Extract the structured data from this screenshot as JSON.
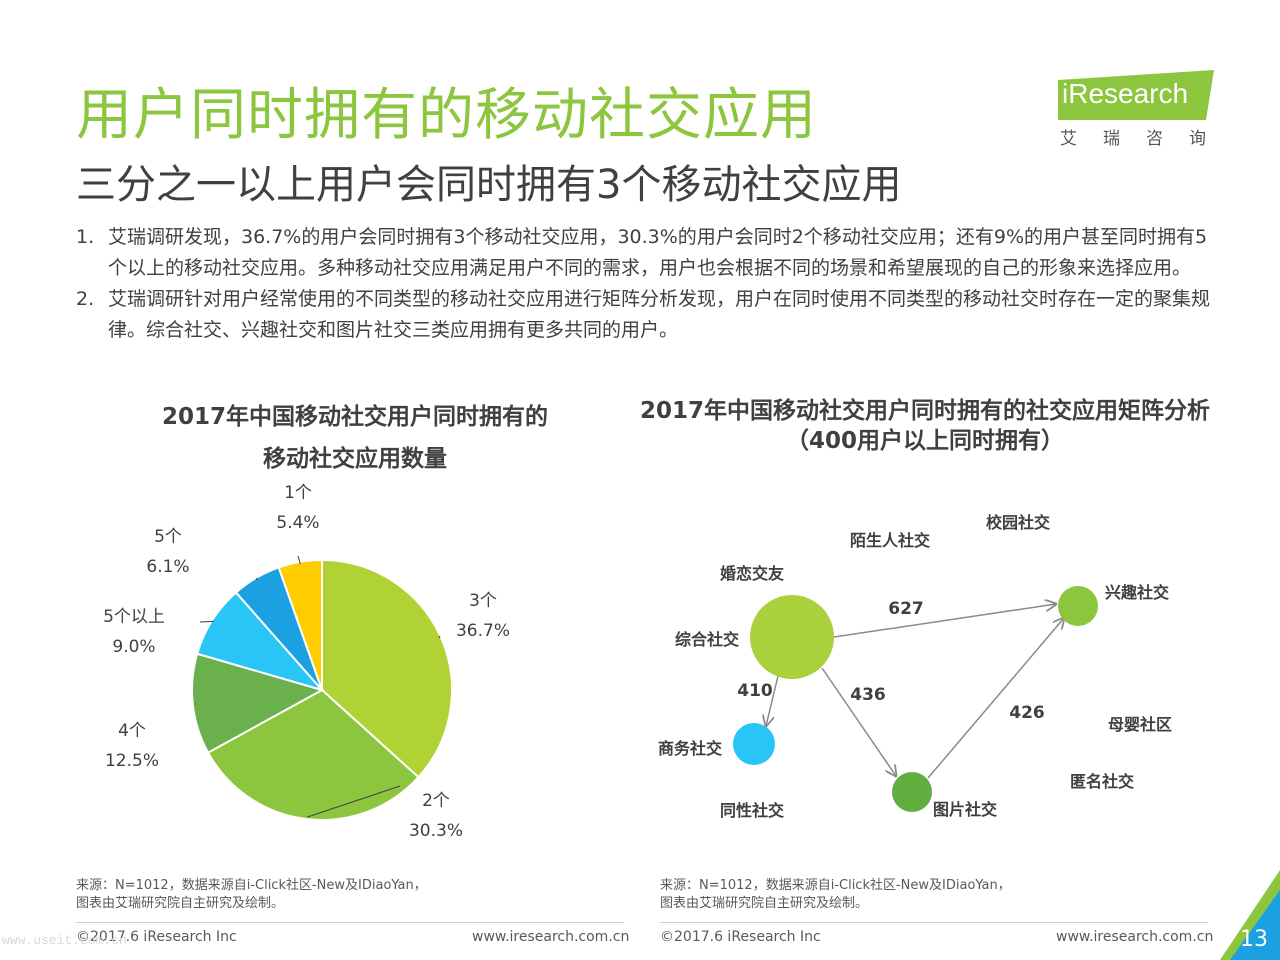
{
  "header": {
    "title": "用户同时拥有的移动社交应用",
    "subtitle": "三分之一以上用户会同时拥有3个移动社交应用",
    "logo_text": "iResearch",
    "logo_sub": "艾瑞咨询"
  },
  "body": {
    "items": [
      {
        "num": "1.",
        "text": "艾瑞调研发现，36.7%的用户会同时拥有3个移动社交应用，30.3%的用户会同时2个移动社交应用；还有9%的用户甚至同时拥有5个以上的移动社交应用。多种移动社交应用满足用户不同的需求，用户也会根据不同的场景和希望展现的自己的形象来选择应用。"
      },
      {
        "num": "2.",
        "text": "艾瑞调研针对用户经常使用的不同类型的移动社交应用进行矩阵分析发现，用户在同时使用不同类型的移动社交时存在一定的聚集规律。综合社交、兴趣社交和图片社交三类应用拥有更多共同的用户。"
      }
    ]
  },
  "left_chart": {
    "title_line1": "2017年中国移动社交用户同时拥有的",
    "title_line2": "移动社交应用数量",
    "source_line1": "来源：N=1012，数据来源自i-Click社区-New及IDiaoYan，",
    "source_line2": "图表由艾瑞研究院自主研究及绘制。"
  },
  "right_chart": {
    "title_line1": "2017年中国移动社交用户同时拥有的社交应用矩阵分析",
    "title_line2": "（400用户以上同时拥有）",
    "source_line1": "来源：N=1012，数据来源自i-Click社区-New及IDiaoYan，",
    "source_line2": "图表由艾瑞研究院自主研究及绘制。"
  },
  "chart_data": [
    {
      "type": "pie",
      "slices": [
        {
          "label": "3个",
          "value": 36.7,
          "display": "36.7%",
          "color": "#b1d234"
        },
        {
          "label": "2个",
          "value": 30.3,
          "display": "30.3%",
          "color": "#8cc63f"
        },
        {
          "label": "4个",
          "value": 12.5,
          "display": "12.5%",
          "color": "#6ab04c"
        },
        {
          "label": "5个以上",
          "value": 9.0,
          "display": "9.0%",
          "color": "#29c5f6"
        },
        {
          "label": "5个",
          "value": 6.1,
          "display": "6.1%",
          "color": "#1ba1e2"
        },
        {
          "label": "1个",
          "value": 5.4,
          "display": "5.4%",
          "color": "#ffcc00"
        }
      ]
    },
    {
      "type": "network",
      "nodes": [
        {
          "id": "zonghe",
          "label": "综合社交",
          "color": "#a8d13c"
        },
        {
          "id": "xingqu",
          "label": "兴趣社交",
          "color": "#8cc63f"
        },
        {
          "id": "shangwu",
          "label": "商务社交",
          "color": "#29c5f6"
        },
        {
          "id": "tupian",
          "label": "图片社交",
          "color": "#5fae3e"
        },
        {
          "id": "moshengren",
          "label": "陌生人社交"
        },
        {
          "id": "xiaoyuan",
          "label": "校园社交"
        },
        {
          "id": "hunlian",
          "label": "婚恋交友"
        },
        {
          "id": "muying",
          "label": "母婴社区"
        },
        {
          "id": "niming",
          "label": "匿名社交"
        },
        {
          "id": "tongxing",
          "label": "同性社交"
        }
      ],
      "edges": [
        {
          "from": "zonghe",
          "to": "xingqu",
          "value": 627
        },
        {
          "from": "zonghe",
          "to": "shangwu",
          "value": 410
        },
        {
          "from": "zonghe",
          "to": "tupian",
          "value": 436
        },
        {
          "from": "tupian",
          "to": "xingqu",
          "value": 426
        }
      ]
    }
  ],
  "footer": {
    "copyright": "©2017.6 iResearch Inc",
    "website": "www.iresearch.com.cn",
    "page": "13",
    "watermark": "www.useit.com.cn"
  },
  "colors": {
    "accent": "#8cc63f",
    "teal": "#1ba1e2"
  }
}
